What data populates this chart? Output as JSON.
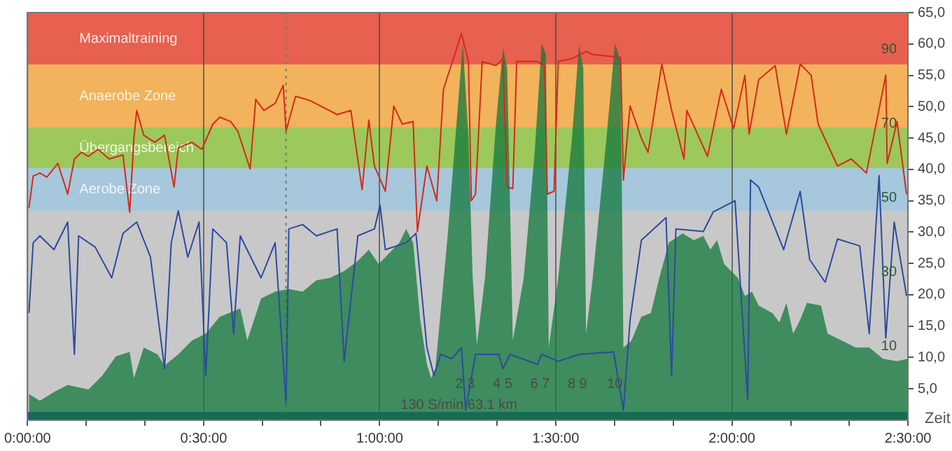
{
  "chart_data": {
    "type": "line",
    "xlabel": "Zeit",
    "xlim": [
      0,
      2.5
    ],
    "xticks": [
      {
        "value": 0,
        "label": "0:00:00"
      },
      {
        "value": 0.167,
        "label": null
      },
      {
        "value": 0.333,
        "label": null
      },
      {
        "value": 0.5,
        "label": "0:30:00"
      },
      {
        "value": 0.667,
        "label": null
      },
      {
        "value": 0.833,
        "label": null
      },
      {
        "value": 1,
        "label": "1:00:00"
      },
      {
        "value": 1.167,
        "label": null
      },
      {
        "value": 1.333,
        "label": null
      },
      {
        "value": 1.5,
        "label": "1:30:00"
      },
      {
        "value": 1.667,
        "label": null
      },
      {
        "value": 1.833,
        "label": null
      },
      {
        "value": 2,
        "label": "2:00:00"
      },
      {
        "value": 2.167,
        "label": null
      },
      {
        "value": 2.333,
        "label": null
      },
      {
        "value": 2.5,
        "label": "2:30:00"
      }
    ],
    "ylim": [
      -10,
      100
    ],
    "yticks": [
      10,
      30,
      50,
      70,
      90
    ],
    "y2lim": [
      0,
      65
    ],
    "y2ticks": [
      {
        "value": 5,
        "label": "5,0"
      },
      {
        "value": 10,
        "label": "10,0"
      },
      {
        "value": 15,
        "label": "15,0"
      },
      {
        "value": 20,
        "label": "20,0"
      },
      {
        "value": 25,
        "label": "25,0"
      },
      {
        "value": 30,
        "label": "30,0"
      },
      {
        "value": 35,
        "label": "35,0"
      },
      {
        "value": 40,
        "label": "40,0"
      },
      {
        "value": 45,
        "label": "45,0"
      },
      {
        "value": 50,
        "label": "50,0"
      },
      {
        "value": 55,
        "label": "55,0"
      },
      {
        "value": 60,
        "label": "60,0"
      },
      {
        "value": 65,
        "label": "65,0"
      }
    ],
    "grid": "x",
    "marker": "none",
    "line_style": "solid",
    "series": [
      {
        "type": "line",
        "color": "#d42a1a",
        "x": [
          0.004,
          0.016,
          0.035,
          0.055,
          0.086,
          0.114,
          0.133,
          0.153,
          0.173,
          0.2,
          0.232,
          0.271,
          0.29,
          0.302,
          0.31,
          0.33,
          0.361,
          0.389,
          0.416,
          0.428,
          0.467,
          0.495,
          0.526,
          0.546,
          0.577,
          0.597,
          0.632,
          0.648,
          0.671,
          0.703,
          0.726,
          0.734,
          0.761,
          0.801,
          0.84,
          0.879,
          0.918,
          0.95,
          0.969,
          0.985,
          1.016,
          1.04,
          1.064,
          1.095,
          1.107,
          1.134,
          1.162,
          1.181,
          1.213,
          1.232,
          1.252,
          1.26,
          1.272,
          1.291,
          1.33,
          1.35,
          1.362,
          1.378,
          1.389,
          1.448,
          1.468,
          1.476,
          1.495,
          1.507,
          1.546,
          1.586,
          1.605,
          1.684,
          1.692,
          1.711,
          1.743,
          1.762,
          1.801,
          1.829,
          1.864,
          1.872,
          1.931,
          1.97,
          2.005,
          2.037,
          2.049,
          2.076,
          2.123,
          2.155,
          2.194,
          2.225,
          2.245,
          2.3,
          2.339,
          2.382,
          2.437,
          2.441,
          2.469,
          2.496
        ],
        "values": [
          47.3,
          55.9,
          56.7,
          55.6,
          59.3,
          51.0,
          60.5,
          62.3,
          61.2,
          63.1,
          60.5,
          61.6,
          46.1,
          66.1,
          73.6,
          66.9,
          65.0,
          66.9,
          52.9,
          63.5,
          65.0,
          63.1,
          69.9,
          71.8,
          70.6,
          68.0,
          57.8,
          76.6,
          73.6,
          75.5,
          80.4,
          68.0,
          77.4,
          76.3,
          74.4,
          72.5,
          73.6,
          52.2,
          71.0,
          58.6,
          51.8,
          74.8,
          69.9,
          70.6,
          40.9,
          58.6,
          49.2,
          79.3,
          88.7,
          94.4,
          86.8,
          49.2,
          51.0,
          86.8,
          85.7,
          87.6,
          52.9,
          52.5,
          86.8,
          86.8,
          85.7,
          51.0,
          51.8,
          86.8,
          87.6,
          89.5,
          88.7,
          87.9,
          54.8,
          74.8,
          66.1,
          62.3,
          86.1,
          73.6,
          60.5,
          73.6,
          61.2,
          79.3,
          68.7,
          83.1,
          67.2,
          81.9,
          85.7,
          67.2,
          86.1,
          83.1,
          69.9,
          58.6,
          60.5,
          56.7,
          83.1,
          59.3,
          70.6,
          51.0
        ]
      },
      {
        "type": "line",
        "axis": "y2",
        "color": "#2c4aa0",
        "x": [
          0.004,
          0.016,
          0.035,
          0.075,
          0.114,
          0.133,
          0.145,
          0.192,
          0.239,
          0.271,
          0.31,
          0.349,
          0.389,
          0.408,
          0.428,
          0.455,
          0.487,
          0.506,
          0.526,
          0.565,
          0.585,
          0.604,
          0.663,
          0.703,
          0.734,
          0.742,
          0.781,
          0.82,
          0.879,
          0.899,
          0.938,
          0.985,
          1.001,
          1.016,
          1.075,
          1.103,
          1.134,
          1.154,
          1.173,
          1.205,
          1.232,
          1.244,
          1.272,
          1.338,
          1.35,
          1.37,
          1.448,
          1.46,
          1.507,
          1.566,
          1.664,
          1.692,
          1.711,
          1.743,
          1.813,
          1.829,
          1.841,
          1.919,
          1.947,
          2.009,
          2.045,
          2.053,
          2.076,
          2.147,
          2.194,
          2.221,
          2.265,
          2.3,
          2.363,
          2.39,
          2.418,
          2.437,
          2.461,
          2.496
        ],
        "values": [
          17.1,
          28.3,
          29.4,
          27.2,
          31.6,
          10.5,
          29.4,
          27.6,
          22.7,
          29.8,
          31.6,
          26.0,
          8.2,
          28.3,
          33.4,
          26.0,
          31.6,
          7.1,
          30.5,
          28.3,
          13.8,
          29.4,
          22.7,
          28.3,
          2.7,
          30.5,
          31.2,
          29.4,
          30.5,
          9.4,
          29.4,
          30.5,
          34.3,
          27.2,
          28.3,
          29.8,
          11.6,
          7.1,
          10.5,
          9.8,
          11.6,
          1.6,
          10.5,
          10.5,
          8.2,
          10.5,
          8.9,
          10.5,
          9.4,
          10.5,
          10.9,
          1.6,
          16.0,
          28.7,
          32.3,
          7.1,
          30.5,
          30.1,
          33.2,
          35.0,
          3.3,
          38.3,
          37.2,
          27.2,
          36.5,
          25.6,
          22.0,
          28.9,
          27.8,
          13.8,
          39.0,
          13.1,
          31.6,
          19.8
        ]
      },
      {
        "type": "area",
        "axis": "y2",
        "color": "#11773a",
        "x": [
          0.004,
          0.035,
          0.075,
          0.114,
          0.173,
          0.212,
          0.251,
          0.29,
          0.302,
          0.33,
          0.369,
          0.389,
          0.428,
          0.467,
          0.506,
          0.546,
          0.604,
          0.624,
          0.663,
          0.703,
          0.742,
          0.781,
          0.82,
          0.859,
          0.899,
          0.938,
          0.969,
          0.997,
          1.016,
          1.056,
          1.075,
          1.095,
          1.115,
          1.134,
          1.146,
          1.158,
          1.193,
          1.221,
          1.236,
          1.252,
          1.264,
          1.276,
          1.299,
          1.33,
          1.35,
          1.362,
          1.378,
          1.409,
          1.44,
          1.46,
          1.472,
          1.48,
          1.507,
          1.546,
          1.566,
          1.578,
          1.586,
          1.605,
          1.644,
          1.668,
          1.684,
          1.692,
          1.715,
          1.743,
          1.77,
          1.794,
          1.821,
          1.86,
          1.892,
          1.919,
          1.939,
          1.958,
          1.978,
          2.017,
          2.037,
          2.057,
          2.076,
          2.115,
          2.135,
          2.155,
          2.174,
          2.194,
          2.213,
          2.253,
          2.272,
          2.312,
          2.351,
          2.39,
          2.429,
          2.469,
          2.5
        ],
        "values": [
          4.2,
          3.1,
          4.5,
          5.6,
          4.9,
          7.1,
          10.2,
          10.9,
          6.7,
          11.6,
          10.5,
          8.7,
          10.5,
          12.7,
          13.8,
          16.5,
          17.8,
          12.7,
          19.4,
          20.5,
          20.9,
          20.5,
          22.3,
          22.7,
          23.8,
          25.4,
          27.2,
          24.9,
          26.0,
          28.3,
          30.5,
          28.3,
          16.0,
          8.9,
          6.7,
          8.2,
          29.4,
          49.4,
          60.1,
          45.0,
          22.7,
          12.0,
          22.7,
          47.2,
          59.4,
          56.1,
          12.7,
          22.7,
          42.7,
          60.1,
          58.3,
          11.6,
          22.7,
          45.0,
          59.9,
          56.1,
          13.8,
          22.7,
          45.0,
          60.1,
          57.2,
          11.6,
          12.7,
          16.5,
          17.1,
          22.7,
          28.3,
          29.8,
          28.7,
          29.4,
          27.2,
          28.7,
          24.9,
          22.7,
          19.8,
          20.5,
          18.3,
          17.1,
          15.6,
          18.7,
          13.8,
          16.0,
          18.7,
          18.3,
          13.8,
          12.7,
          11.6,
          11.6,
          9.8,
          9.4,
          9.8
        ]
      }
    ],
    "bands": [
      {
        "axis": "y",
        "from": 86,
        "to": 100,
        "label": "Maximaltraining",
        "color": "#e8604f"
      },
      {
        "axis": "y",
        "from": 69,
        "to": 86,
        "label": "Anaerobe Zone",
        "color": "#f2b35c"
      },
      {
        "axis": "y",
        "from": 58,
        "to": 69,
        "label": "Übergangsbereich",
        "color": "#9dc85b"
      },
      {
        "axis": "y",
        "from": 46.5,
        "to": 58,
        "label": "Aerobe Zone",
        "color": "#a6c7dc"
      },
      {
        "axis": "y2",
        "from": 0,
        "to": 1.3,
        "color": "#2347a8"
      }
    ],
    "ref_lines": [
      {
        "axis": "x",
        "value": 0.734,
        "color": "#777777",
        "line_style": "dotted"
      }
    ],
    "annotations": [
      "2 3",
      "4 5",
      "6 7",
      "8 9",
      "10",
      "130 S/min 63.1 km"
    ],
    "legend": false
  }
}
